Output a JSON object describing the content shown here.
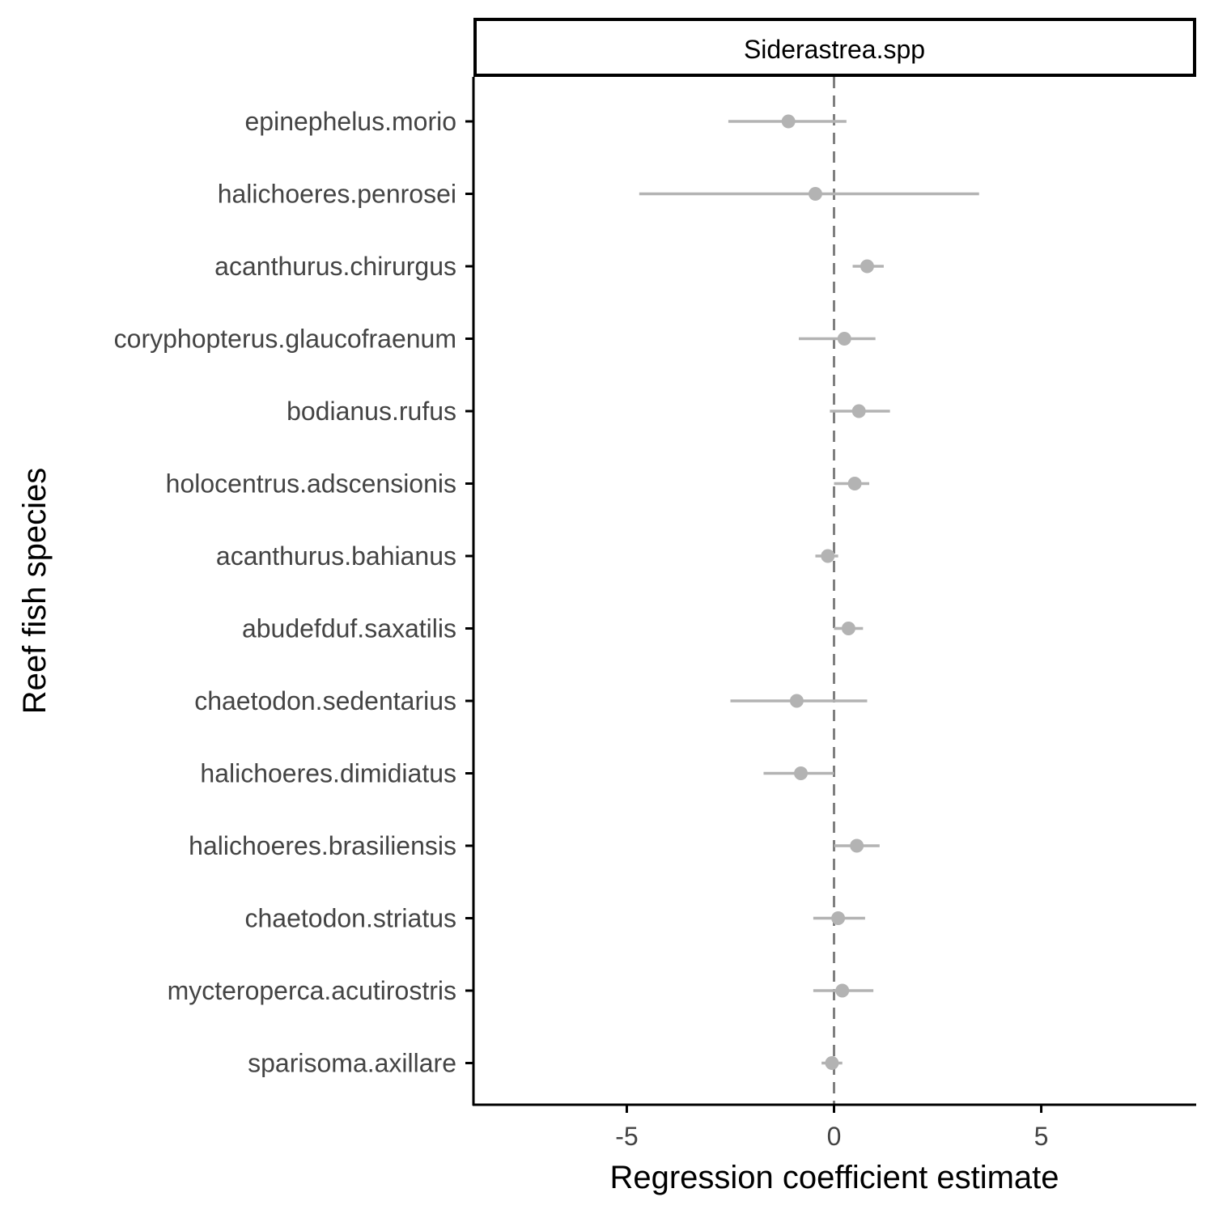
{
  "chart_data": {
    "type": "scatter",
    "subtype": "coefficient-plot-with-error-bars",
    "facet_label": "Siderastrea.spp",
    "xlabel": "Regression coefficient estimate",
    "ylabel": "Reef fish species",
    "xlim": [
      -8.7,
      8.7
    ],
    "x_ticks": [
      -5,
      0,
      5
    ],
    "x_tick_labels": [
      "-5",
      "0",
      "5"
    ],
    "reference_line_x": 0,
    "grid": false,
    "legend": "none",
    "point_color": "#b3b3b3",
    "reference_line_color": "#7f7f7f",
    "series": [
      {
        "points": [
          {
            "species": "epinephelus.morio",
            "estimate": -1.1,
            "lower": -2.55,
            "upper": 0.3
          },
          {
            "species": "halichoeres.penrosei",
            "estimate": -0.45,
            "lower": -4.7,
            "upper": 3.5
          },
          {
            "species": "acanthurus.chirurgus",
            "estimate": 0.8,
            "lower": 0.45,
            "upper": 1.2
          },
          {
            "species": "coryphopterus.glaucofraenum",
            "estimate": 0.25,
            "lower": -0.85,
            "upper": 1.0
          },
          {
            "species": "bodianus.rufus",
            "estimate": 0.6,
            "lower": -0.1,
            "upper": 1.35
          },
          {
            "species": "holocentrus.adscensionis",
            "estimate": 0.5,
            "lower": 0.0,
            "upper": 0.85
          },
          {
            "species": "acanthurus.bahianus",
            "estimate": -0.15,
            "lower": -0.45,
            "upper": 0.1
          },
          {
            "species": "abudefduf.saxatilis",
            "estimate": 0.35,
            "lower": 0.0,
            "upper": 0.7
          },
          {
            "species": "chaetodon.sedentarius",
            "estimate": -0.9,
            "lower": -2.5,
            "upper": 0.8
          },
          {
            "species": "halichoeres.dimidiatus",
            "estimate": -0.8,
            "lower": -1.7,
            "upper": 0.0
          },
          {
            "species": "halichoeres.brasiliensis",
            "estimate": 0.55,
            "lower": 0.0,
            "upper": 1.1
          },
          {
            "species": "chaetodon.striatus",
            "estimate": 0.1,
            "lower": -0.5,
            "upper": 0.75
          },
          {
            "species": "mycteroperca.acutirostris",
            "estimate": 0.2,
            "lower": -0.5,
            "upper": 0.95
          },
          {
            "species": "sparisoma.axillare",
            "estimate": -0.05,
            "lower": -0.3,
            "upper": 0.2
          }
        ]
      }
    ]
  }
}
